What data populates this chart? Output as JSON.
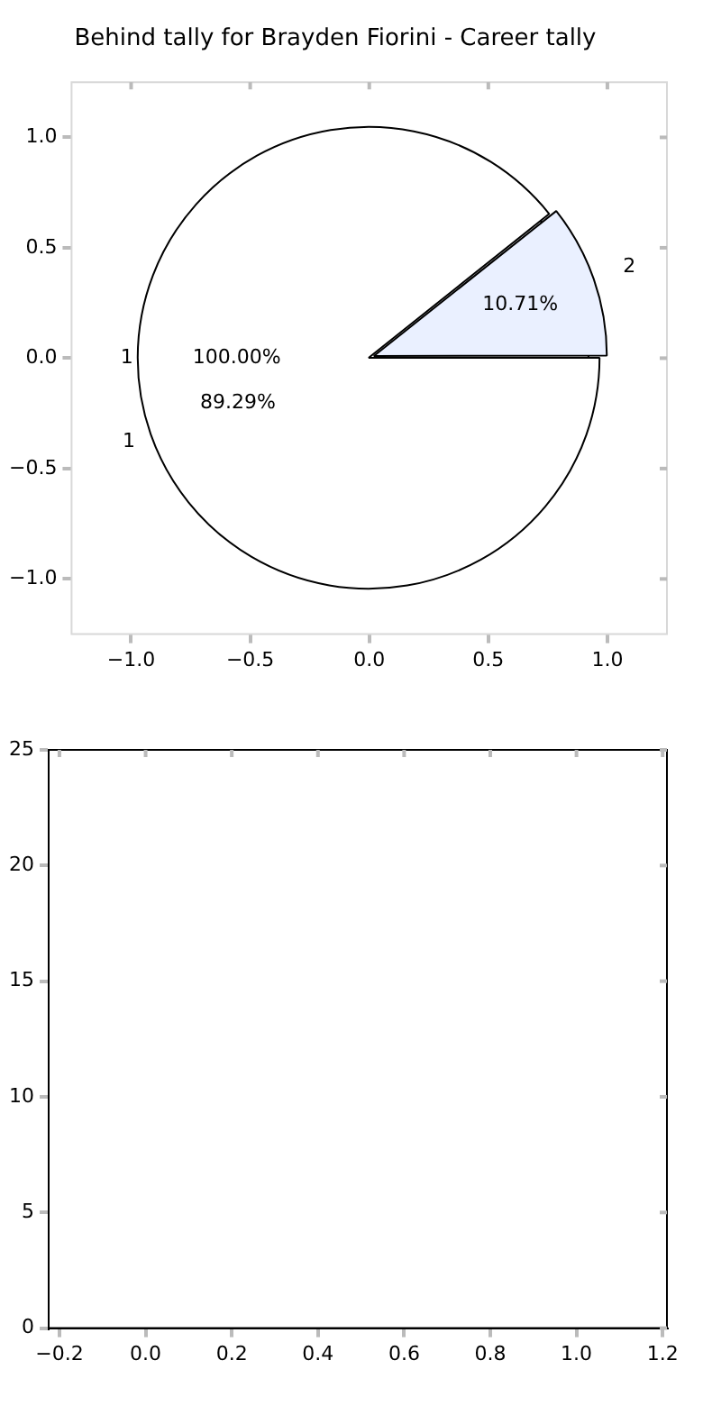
{
  "chart_data": [
    {
      "type": "scatter",
      "title": "Behind tally for Brayden Fiorini - Career tally",
      "legend": false,
      "grid": false,
      "xlim": [
        -1.25,
        1.25
      ],
      "ylim": [
        -1.25,
        1.25
      ],
      "xticks": [
        {
          "value": -1,
          "label": "−1.0"
        },
        {
          "value": -0.5,
          "label": "−0.5"
        },
        {
          "value": 0,
          "label": "0.0"
        },
        {
          "value": 0.5,
          "label": "0.5"
        },
        {
          "value": 1,
          "label": "1.0"
        }
      ],
      "yticks": [
        {
          "value": -1,
          "label": "−1.0"
        },
        {
          "value": -0.5,
          "label": "−0.5"
        },
        {
          "value": 0,
          "label": "0.0"
        },
        {
          "value": 0.5,
          "label": "0.5"
        },
        {
          "value": 1,
          "label": "1.0"
        }
      ]
    },
    {
      "type": "pie",
      "categories": [
        "1"
      ],
      "values": [
        100
      ],
      "colors": [
        "#ffffff"
      ],
      "value_labels": [
        "100.00%"
      ],
      "legend": false
    },
    {
      "type": "pie",
      "categories": [
        "1",
        "2"
      ],
      "values": [
        89.29,
        10.71
      ],
      "colors": [
        "#ffffff",
        "#eaf0ff"
      ],
      "value_labels": [
        "89.29%",
        "10.71%"
      ],
      "legend": false
    },
    {
      "type": "scatter",
      "legend": false,
      "grid": false,
      "xlim": [
        -0.225,
        1.21
      ],
      "ylim": [
        0,
        25
      ],
      "xticks": [
        {
          "value": -0.2,
          "label": "−0.2"
        },
        {
          "value": 0,
          "label": "0.0"
        },
        {
          "value": 0.2,
          "label": "0.2"
        },
        {
          "value": 0.4,
          "label": "0.4"
        },
        {
          "value": 0.6,
          "label": "0.6"
        },
        {
          "value": 0.8,
          "label": "0.8"
        },
        {
          "value": 1,
          "label": "1.0"
        },
        {
          "value": 1.2,
          "label": "1.2"
        }
      ],
      "yticks": [
        0,
        5,
        10,
        15,
        20,
        25
      ]
    }
  ]
}
